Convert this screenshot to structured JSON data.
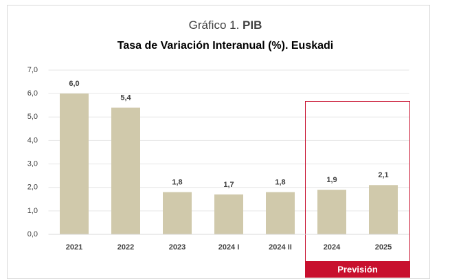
{
  "chart_data": {
    "type": "bar",
    "title": "Gráfico 1.",
    "title_bold": "PIB",
    "subtitle": "Tasa de Variación Interanual (%). Euskadi",
    "categories": [
      "2021",
      "2022",
      "2023",
      "2024 I",
      "2024 II",
      "2024",
      "2025"
    ],
    "values": [
      6.0,
      5.4,
      1.8,
      1.7,
      1.8,
      1.9,
      2.1
    ],
    "value_labels": [
      "6,0",
      "5,4",
      "1,8",
      "1,7",
      "1,8",
      "1,9",
      "2,1"
    ],
    "color": "#d0c9ab",
    "ylim": [
      0,
      7
    ],
    "yticks": [
      {
        "value": 0,
        "label": "0,0"
      },
      {
        "value": 1,
        "label": "1,0"
      },
      {
        "value": 2,
        "label": "2,0"
      },
      {
        "value": 3,
        "label": "3,0"
      },
      {
        "value": 4,
        "label": "4,0"
      },
      {
        "value": 5,
        "label": "5,0"
      },
      {
        "value": 6,
        "label": "6,0"
      },
      {
        "value": 7,
        "label": "7,0"
      }
    ],
    "grid": true,
    "annotation": "Previsión",
    "annotation_color": "#c8102e"
  }
}
